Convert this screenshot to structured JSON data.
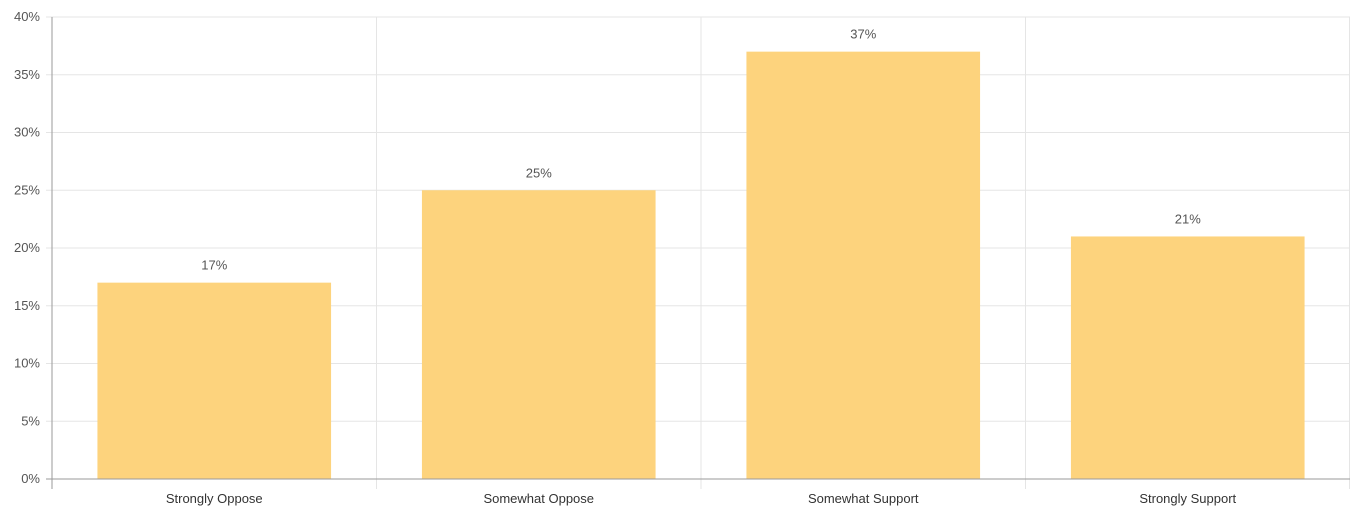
{
  "chart_data": {
    "type": "bar",
    "title": "",
    "xlabel": "",
    "ylabel": "",
    "categories": [
      "Strongly Oppose",
      "Somewhat Oppose",
      "Somewhat Support",
      "Strongly Support"
    ],
    "values": [
      17,
      25,
      37,
      21
    ],
    "data_labels": [
      "17%",
      "25%",
      "37%",
      "21%"
    ],
    "ylim": [
      0,
      40
    ],
    "yticks": [
      0,
      5,
      10,
      15,
      20,
      25,
      30,
      35,
      40
    ],
    "ytick_labels": [
      "0%",
      "5%",
      "10%",
      "15%",
      "20%",
      "25%",
      "30%",
      "35%",
      "40%"
    ],
    "grid": true,
    "legend": "none",
    "bar_color": "#fdd37d"
  }
}
